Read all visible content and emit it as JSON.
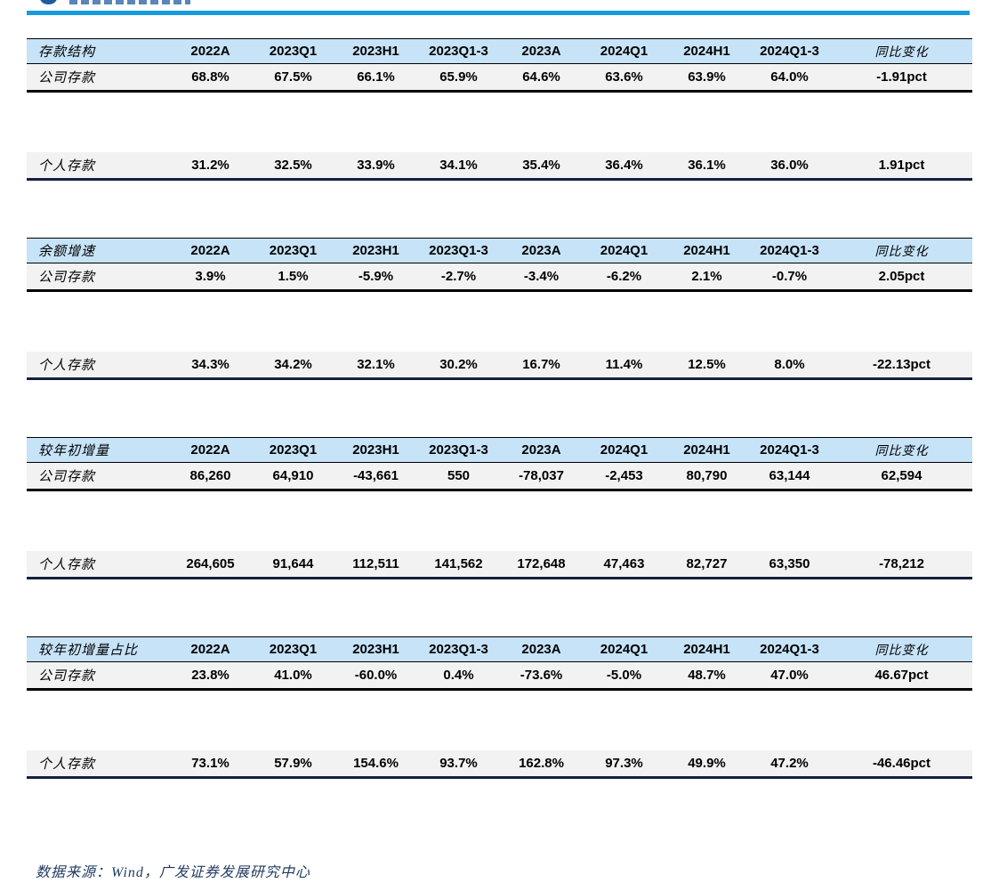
{
  "brand": {
    "logo_name": "gf-securities-logo",
    "accent_blue": "#189bdd",
    "header_blue": "#c6e3f8",
    "row_gray": "#f2f2f2"
  },
  "columns": [
    "2022A",
    "2023Q1",
    "2023H1",
    "2023Q1-3",
    "2023A",
    "2024Q1",
    "2024H1",
    "2024Q1-3",
    "同比变化"
  ],
  "tables": [
    {
      "title": "存款结构",
      "rows": [
        {
          "label": "公司存款",
          "values": [
            "68.8%",
            "67.5%",
            "66.1%",
            "65.9%",
            "64.6%",
            "63.6%",
            "63.9%",
            "64.0%",
            "-1.91pct"
          ]
        },
        {
          "label": "个人存款",
          "values": [
            "31.2%",
            "32.5%",
            "33.9%",
            "34.1%",
            "35.4%",
            "36.4%",
            "36.1%",
            "36.0%",
            "1.91pct"
          ]
        }
      ]
    },
    {
      "title": "余额增速",
      "rows": [
        {
          "label": "公司存款",
          "values": [
            "3.9%",
            "1.5%",
            "-5.9%",
            "-2.7%",
            "-3.4%",
            "-6.2%",
            "2.1%",
            "-0.7%",
            "2.05pct"
          ]
        },
        {
          "label": "个人存款",
          "values": [
            "34.3%",
            "34.2%",
            "32.1%",
            "30.2%",
            "16.7%",
            "11.4%",
            "12.5%",
            "8.0%",
            "-22.13pct"
          ]
        }
      ]
    },
    {
      "title": "较年初增量",
      "rows": [
        {
          "label": "公司存款",
          "values": [
            "86,260",
            "64,910",
            "-43,661",
            "550",
            "-78,037",
            "-2,453",
            "80,790",
            "63,144",
            "62,594"
          ]
        },
        {
          "label": "个人存款",
          "values": [
            "264,605",
            "91,644",
            "112,511",
            "141,562",
            "172,648",
            "47,463",
            "82,727",
            "63,350",
            "-78,212"
          ]
        }
      ]
    },
    {
      "title": "较年初增量占比",
      "rows": [
        {
          "label": "公司存款",
          "values": [
            "23.8%",
            "41.0%",
            "-60.0%",
            "0.4%",
            "-73.6%",
            "-5.0%",
            "48.7%",
            "47.0%",
            "46.67pct"
          ]
        },
        {
          "label": "个人存款",
          "values": [
            "73.1%",
            "57.9%",
            "154.6%",
            "93.7%",
            "162.8%",
            "97.3%",
            "49.9%",
            "47.2%",
            "-46.46pct"
          ]
        }
      ]
    }
  ],
  "footer": {
    "source_text": "数据来源：Wind，广发证券发展研究中心"
  }
}
